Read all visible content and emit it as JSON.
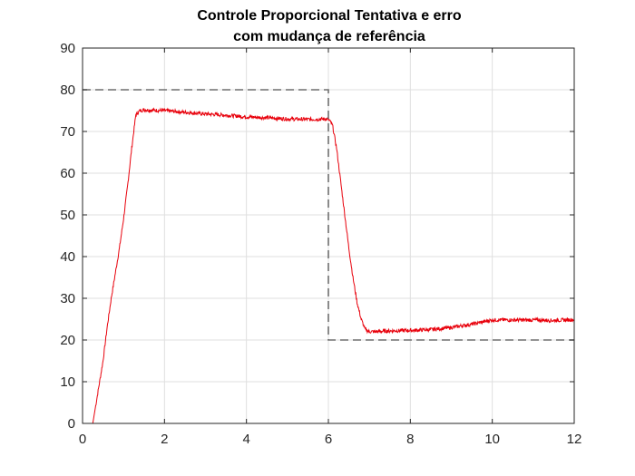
{
  "chart_data": {
    "type": "line",
    "title": "Controle Proporcional Tentativa e erro",
    "subtitle": "com mudança de referência",
    "xlabel": "",
    "ylabel": "",
    "xlim": [
      0,
      12
    ],
    "ylim": [
      0,
      90
    ],
    "xticks": [
      0,
      2,
      4,
      6,
      8,
      10,
      12
    ],
    "yticks": [
      0,
      10,
      20,
      30,
      40,
      50,
      60,
      70,
      80,
      90
    ],
    "grid": true,
    "legend": "none",
    "series": [
      {
        "color": "#e8000b",
        "style": "solid",
        "x": [
          0,
          0.25,
          0.3,
          0.4,
          0.5,
          0.6,
          0.7,
          0.8,
          0.9,
          1.0,
          1.1,
          1.2,
          1.3,
          1.4,
          1.5,
          1.7,
          2.0,
          2.5,
          3.0,
          3.5,
          4.0,
          4.5,
          5.0,
          5.5,
          6.0,
          6.1,
          6.2,
          6.3,
          6.4,
          6.5,
          6.6,
          6.7,
          6.8,
          6.9,
          7.0,
          7.2,
          7.5,
          8.0,
          8.5,
          9.0,
          9.5,
          10.0,
          10.5,
          11.0,
          11.5,
          12.0
        ],
        "y": [
          0,
          0,
          3,
          9,
          15,
          23,
          30,
          36,
          42,
          49,
          57,
          66,
          74,
          75,
          75.2,
          75.1,
          75,
          74.6,
          74.2,
          73.9,
          73.5,
          73.3,
          73,
          72.9,
          73,
          71.5,
          66,
          58,
          50,
          42,
          35,
          29,
          25,
          22.5,
          22,
          22,
          22.2,
          22.3,
          22.5,
          23,
          23.8,
          24.8,
          24.8,
          24.8,
          24.7,
          24.9
        ]
      },
      {
        "color": "#6e6e6e",
        "style": "dashed",
        "x": [
          0,
          6,
          6,
          12
        ],
        "y": [
          80,
          80,
          20,
          20
        ]
      }
    ]
  },
  "colors": {
    "axis": "#262626",
    "grid": "#dfdfdf",
    "response": "#e8000b",
    "reference": "#6e6e6e"
  }
}
